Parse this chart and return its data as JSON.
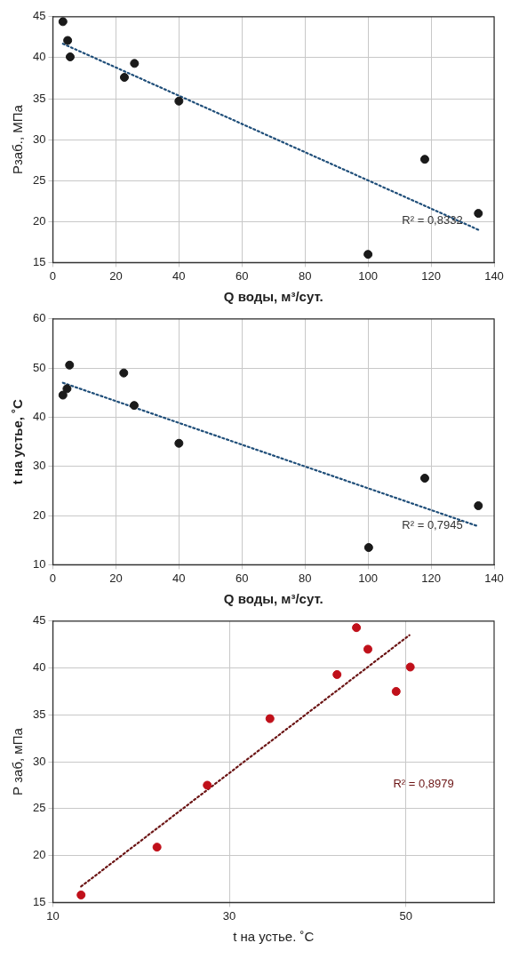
{
  "chart_data": [
    {
      "type": "scatter",
      "xlabel": "Q воды, м³/сут.",
      "ylabel": "Рзаб., МПа",
      "xlim": [
        0,
        140
      ],
      "xticks": [
        0,
        20,
        40,
        60,
        80,
        100,
        120,
        140
      ],
      "ylim": [
        15,
        45
      ],
      "yticks": [
        15,
        20,
        25,
        30,
        35,
        40,
        45
      ],
      "grid": true,
      "legend": false,
      "marker": "circle",
      "series": [
        {
          "color": "#1a1a1a",
          "x": [
            3.2,
            4.7,
            5.5,
            22.7,
            25.9,
            40,
            100,
            118,
            135
          ],
          "values": [
            44.4,
            42.1,
            40.1,
            37.6,
            39.3,
            34.7,
            16,
            27.6,
            21
          ]
        },
        {
          "type": "line",
          "color": "#1f4e79",
          "line_style": "dotted",
          "marker": "none",
          "x": [
            3.2,
            135
          ],
          "values": [
            41.7,
            19.0
          ]
        }
      ],
      "annotations": [
        "R² = 0,8332"
      ]
    },
    {
      "type": "scatter",
      "xlabel": "Q воды, м³/сут.",
      "ylabel": "t на устье, ˚С",
      "xlim": [
        0,
        140
      ],
      "xticks": [
        0,
        20,
        40,
        60,
        80,
        100,
        120,
        140
      ],
      "ylim": [
        10,
        60
      ],
      "yticks": [
        10,
        20,
        30,
        40,
        50,
        60
      ],
      "grid": true,
      "legend": false,
      "marker": "circle",
      "series": [
        {
          "color": "#1a1a1a",
          "x": [
            3.2,
            4.5,
            5.3,
            22.5,
            25.8,
            40,
            100.2,
            118,
            135
          ],
          "values": [
            44.5,
            45.8,
            50.6,
            49,
            42.4,
            34.7,
            13.5,
            27.6,
            22
          ]
        },
        {
          "type": "line",
          "color": "#1f4e79",
          "line_style": "dotted",
          "marker": "none",
          "x": [
            3.2,
            135
          ],
          "values": [
            47.0,
            17.8
          ]
        }
      ],
      "annotations": [
        "R² = 0,7945"
      ]
    },
    {
      "type": "scatter",
      "xlabel": "t на устье. ˚С",
      "ylabel": "Р заб, мПа",
      "xlim": [
        10,
        60
      ],
      "xticks": [
        10,
        30,
        50
      ],
      "ylim": [
        15,
        45
      ],
      "yticks": [
        15,
        20,
        25,
        30,
        35,
        40,
        45
      ],
      "grid": true,
      "legend": false,
      "marker": "circle",
      "series": [
        {
          "color": "#c0101a",
          "x": [
            13.2,
            21.8,
            27.5,
            34.6,
            42.2,
            44.4,
            45.7,
            48.9,
            50.5
          ],
          "values": [
            15.8,
            20.9,
            27.5,
            34.6,
            39.3,
            44.3,
            42,
            37.5,
            40.1
          ]
        },
        {
          "type": "line",
          "color": "#6b1414",
          "line_style": "dotted",
          "marker": "none",
          "x": [
            13.2,
            50.4
          ],
          "values": [
            16.7,
            43.5
          ]
        }
      ],
      "annotations": [
        "R² = 0,8979"
      ]
    }
  ]
}
